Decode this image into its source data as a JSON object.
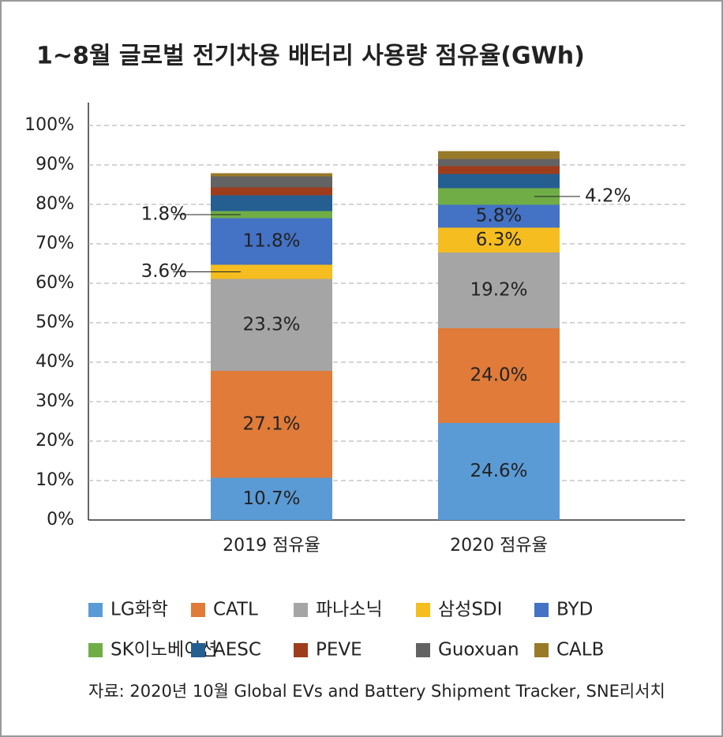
{
  "chart_data": {
    "type": "stacked_bar",
    "title": "1~8월 글로벌 전기차용 배터리 사용량 점유율(GWh)",
    "source": "자료: 2020년 10월 Global EVs and Battery Shipment Tracker, SNE리서치",
    "categories": [
      "2019 점유율",
      "2020 점유율"
    ],
    "ylim": [
      0,
      100
    ],
    "yticks": [
      {
        "value": 0,
        "label": "0%"
      },
      {
        "value": 10,
        "label": "10%"
      },
      {
        "value": 20,
        "label": "20%"
      },
      {
        "value": 30,
        "label": "30%"
      },
      {
        "value": 40,
        "label": "40%"
      },
      {
        "value": 50,
        "label": "50%"
      },
      {
        "value": 60,
        "label": "60%"
      },
      {
        "value": 70,
        "label": "70%"
      },
      {
        "value": 80,
        "label": "80%"
      },
      {
        "value": 90,
        "label": "90%"
      },
      {
        "value": 100,
        "label": "100%"
      }
    ],
    "grid": true,
    "series": [
      {
        "name": "LG화학",
        "color": "#5b9bd5",
        "values": [
          10.7,
          24.6
        ],
        "value_labels": [
          "10.7%",
          "24.6%"
        ]
      },
      {
        "name": "CATL",
        "color": "#e07b39",
        "values": [
          27.1,
          24.0
        ],
        "value_labels": [
          "27.1%",
          "24.0%"
        ]
      },
      {
        "name": "파나소닉",
        "color": "#a5a5a5",
        "values": [
          23.3,
          19.2
        ],
        "value_labels": [
          "23.3%",
          "19.2%"
        ]
      },
      {
        "name": "삼성SDI",
        "color": "#f5bd1f",
        "values": [
          3.6,
          6.3
        ],
        "value_labels": [
          "3.6%",
          "6.3%"
        ]
      },
      {
        "name": "BYD",
        "color": "#4472c4",
        "values": [
          11.8,
          5.8
        ],
        "value_labels": [
          "11.8%",
          "5.8%"
        ]
      },
      {
        "name": "SK이노베이션",
        "color": "#70ad47",
        "values": [
          1.8,
          4.2
        ],
        "value_labels": [
          "1.8%",
          "4.2%"
        ]
      },
      {
        "name": "AESC",
        "color": "#255e91",
        "values": [
          4.0,
          3.6
        ]
      },
      {
        "name": "PEVE",
        "color": "#9e3d1c",
        "values": [
          2.0,
          2.0
        ]
      },
      {
        "name": "Guoxuan",
        "color": "#636363",
        "values": [
          2.8,
          1.8
        ]
      },
      {
        "name": "CALB",
        "color": "#997a28",
        "values": [
          0.8,
          2.0
        ]
      }
    ]
  }
}
